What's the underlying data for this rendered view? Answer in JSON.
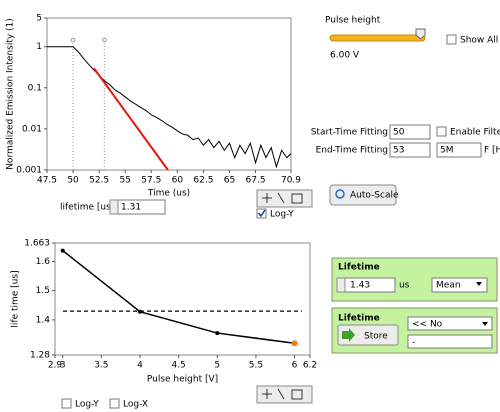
{
  "chart_data": [
    {
      "type": "line",
      "ylabel": "Normalized Emission Intensity (1)",
      "xlabel": "Time (us)",
      "xlim": [
        47.5,
        70.9
      ],
      "xticks": [
        47.5,
        50,
        52.5,
        55,
        57.5,
        60,
        62.5,
        65,
        67.5,
        70.9
      ],
      "ylim": [
        0.001,
        5
      ],
      "yticks": [
        0.001,
        0.01,
        0.1,
        1,
        5
      ],
      "log_y": true,
      "cursors": [
        50,
        53
      ],
      "series": [
        {
          "color": "#000000",
          "x": [
            47.5,
            50,
            50.5,
            51,
            51.5,
            52,
            52.5,
            53,
            53.5,
            54,
            54.5,
            55,
            55.5,
            56,
            56.5,
            57,
            57.5,
            58,
            58.5,
            59,
            59.5,
            60,
            60.5,
            61,
            61.5,
            62,
            62.5,
            63,
            63.5,
            64,
            64.5,
            65,
            65.5,
            66,
            66.5,
            67,
            67.5,
            68,
            68.5,
            69,
            69.5,
            70,
            70.5,
            70.9
          ],
          "values": [
            1,
            1,
            0.75,
            0.52,
            0.37,
            0.27,
            0.2,
            0.15,
            0.12,
            0.09,
            0.075,
            0.06,
            0.048,
            0.04,
            0.033,
            0.028,
            0.022,
            0.019,
            0.016,
            0.013,
            0.011,
            0.009,
            0.0075,
            0.007,
            0.0055,
            0.006,
            0.004,
            0.0055,
            0.0035,
            0.005,
            0.003,
            0.0045,
            0.002,
            0.004,
            0.0025,
            0.0045,
            0.0015,
            0.004,
            0.002,
            0.0035,
            0.0012,
            0.003,
            0.002,
            0.0025
          ]
        },
        {
          "color": "#e8150f",
          "x": [
            52,
            59.1
          ],
          "values": [
            0.3,
            0.001
          ]
        }
      ]
    },
    {
      "type": "line",
      "ylabel": "life time [us]",
      "xlabel": "Pulse height [V]",
      "xlim": [
        2.9,
        6.2
      ],
      "xticks": [
        2.9,
        3,
        3.5,
        4,
        4.5,
        5,
        5.5,
        6,
        6.2
      ],
      "ylim": [
        1.28,
        1.663
      ],
      "yticks": [
        1.28,
        1.4,
        1.5,
        1.6,
        1.663
      ],
      "mean": 1.43,
      "highlight_color": "#f07d10",
      "series": [
        {
          "color": "#000000",
          "x": [
            3,
            4,
            5,
            6
          ],
          "values": [
            1.637,
            1.428,
            1.355,
            1.32
          ]
        }
      ]
    }
  ],
  "controls": {
    "pulse_height_label": "Pulse height",
    "pulse_height_value": "6.00 V",
    "show_all": "Show All",
    "lifetime_label": "lifetime [us]",
    "lifetime_value": "1.31",
    "log_y_top": "Log-Y",
    "auto_scale": "Auto-Scale",
    "start_time_label": "Start-Time Fitting",
    "start_time_value": "50",
    "end_time_label": "End-Time Fitting",
    "end_time_value": "53",
    "enable_filter": "Enable Filter",
    "filter_value": "5M",
    "filter_unit": "F [Hz]",
    "mean_panel": {
      "title": "Lifetime",
      "value": "1.43",
      "unit": "us",
      "mode": "Mean"
    },
    "store_panel": {
      "title": "Lifetime",
      "store": "Store",
      "selection": "<< No",
      "text": "-"
    },
    "log_y_bottom": "Log-Y",
    "log_x_bottom": "Log-X"
  }
}
